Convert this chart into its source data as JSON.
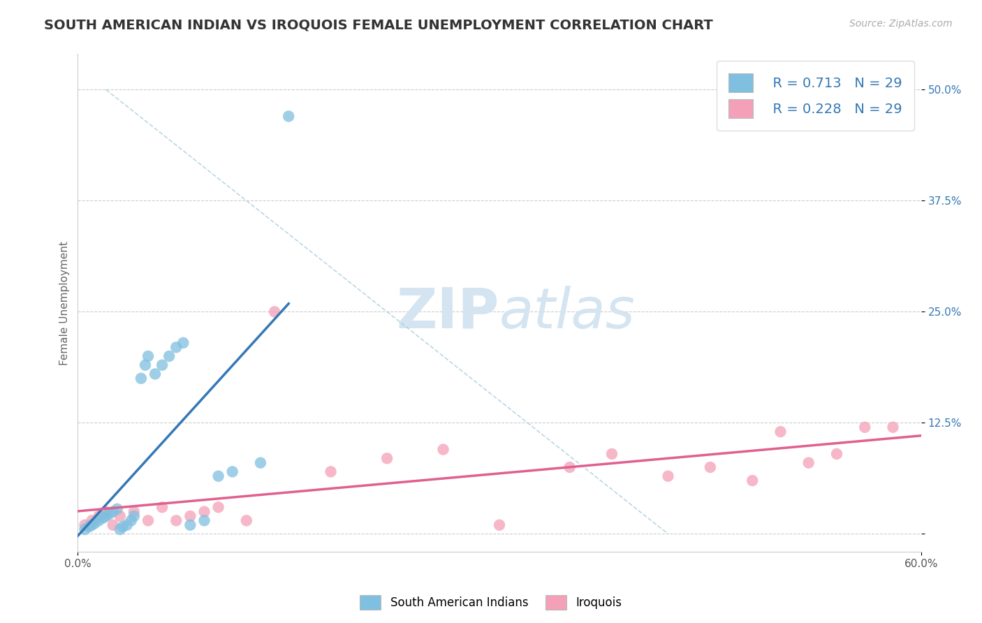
{
  "title": "SOUTH AMERICAN INDIAN VS IROQUOIS FEMALE UNEMPLOYMENT CORRELATION CHART",
  "source_text": "Source: ZipAtlas.com",
  "ylabel": "Female Unemployment",
  "xlim": [
    0.0,
    0.6
  ],
  "ylim": [
    -0.02,
    0.54
  ],
  "ytick_labels": [
    "",
    "12.5%",
    "25.0%",
    "37.5%",
    "50.0%"
  ],
  "yticks": [
    0.0,
    0.125,
    0.25,
    0.375,
    0.5
  ],
  "grid_color": "#cccccc",
  "background_color": "#ffffff",
  "blue_color": "#7fbfdf",
  "pink_color": "#f4a0b8",
  "blue_line_color": "#3478b5",
  "pink_line_color": "#e06090",
  "watermark_color": "#d4e4f0",
  "legend_r_blue": "R = 0.713",
  "legend_n_blue": "N = 29",
  "legend_r_pink": "R = 0.228",
  "legend_n_pink": "N = 29",
  "legend_label_blue": "South American Indians",
  "legend_label_pink": "Iroquois",
  "blue_scatter_x": [
    0.005,
    0.008,
    0.01,
    0.012,
    0.015,
    0.018,
    0.02,
    0.022,
    0.025,
    0.028,
    0.03,
    0.032,
    0.035,
    0.038,
    0.04,
    0.045,
    0.048,
    0.05,
    0.055,
    0.06,
    0.065,
    0.07,
    0.075,
    0.08,
    0.09,
    0.1,
    0.11,
    0.13,
    0.15
  ],
  "blue_scatter_y": [
    0.005,
    0.008,
    0.01,
    0.012,
    0.015,
    0.018,
    0.02,
    0.022,
    0.025,
    0.028,
    0.005,
    0.008,
    0.01,
    0.015,
    0.02,
    0.175,
    0.19,
    0.2,
    0.18,
    0.19,
    0.2,
    0.21,
    0.215,
    0.01,
    0.015,
    0.065,
    0.07,
    0.08,
    0.47
  ],
  "pink_scatter_x": [
    0.005,
    0.01,
    0.015,
    0.02,
    0.025,
    0.03,
    0.04,
    0.05,
    0.06,
    0.07,
    0.08,
    0.09,
    0.1,
    0.12,
    0.14,
    0.18,
    0.22,
    0.26,
    0.3,
    0.35,
    0.38,
    0.42,
    0.45,
    0.48,
    0.5,
    0.52,
    0.54,
    0.56,
    0.58
  ],
  "pink_scatter_y": [
    0.01,
    0.015,
    0.02,
    0.025,
    0.01,
    0.02,
    0.025,
    0.015,
    0.03,
    0.015,
    0.02,
    0.025,
    0.03,
    0.015,
    0.25,
    0.07,
    0.085,
    0.095,
    0.01,
    0.075,
    0.09,
    0.065,
    0.075,
    0.06,
    0.115,
    0.08,
    0.09,
    0.12,
    0.12
  ],
  "title_fontsize": 14,
  "axis_label_fontsize": 11,
  "tick_fontsize": 11,
  "source_fontsize": 10
}
